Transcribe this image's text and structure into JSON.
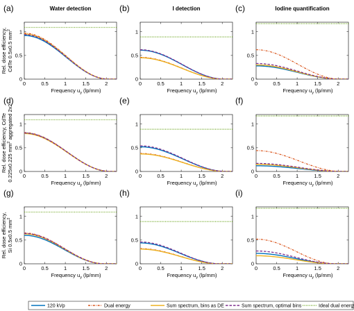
{
  "figure": {
    "legend": [
      {
        "label": "120 kVp",
        "color": "#0072bd",
        "dash": "solid"
      },
      {
        "label": "Dual energy",
        "color": "#d95319",
        "dash": "dash-dot"
      },
      {
        "label": "Sum spectrum, bins as DE",
        "color": "#edb120",
        "dash": "solid"
      },
      {
        "label": "Sum spectrum, optimal bins",
        "color": "#7e2f8e",
        "dash": "dash"
      },
      {
        "label": "Ideal dual energy",
        "color": "#77ac30",
        "dash": "dotted"
      }
    ],
    "column_titles": [
      "Water detection",
      "I detection",
      "Iodine quantification"
    ],
    "row_ylabels": [
      [
        "Rel. dose efficiency,",
        "CdTe 0.5x0.5 mm²"
      ],
      [
        "Rel. dose efficiency, CdTe",
        "0.225x0.225 mm² aggregated 2x2"
      ],
      [
        "Rel. dose efficiency,",
        "Si 0.5x0.5 mm²"
      ]
    ],
    "xlabel": "Frequency u_y (lp/mm)"
  },
  "chart_data": [
    {
      "type": "line",
      "panel": "(a)",
      "title": "Water detection",
      "xlim": [
        0,
        2.25
      ],
      "ylim": [
        0,
        1.2
      ],
      "xticks": [
        0,
        0.5,
        1,
        1.5,
        2
      ],
      "yticks": [
        0,
        0.5,
        1
      ],
      "series": [
        {
          "name": "120 kVp",
          "peak": 0.92,
          "cutoff": 2.05
        },
        {
          "name": "Dual energy",
          "peak": 0.97,
          "cutoff": 2.05
        },
        {
          "name": "Sum spectrum, bins as DE",
          "peak": 0.95,
          "cutoff": 2.05
        },
        {
          "name": "Sum spectrum, optimal bins",
          "peak": 0.94,
          "cutoff": 2.05
        },
        {
          "name": "Ideal dual energy",
          "constant": 1.09
        }
      ]
    },
    {
      "type": "line",
      "panel": "(b)",
      "title": "I detection",
      "xlim": [
        0,
        2.25
      ],
      "ylim": [
        0,
        1.2
      ],
      "xticks": [
        0,
        0.5,
        1,
        1.5,
        2
      ],
      "yticks": [
        0,
        0.5,
        1
      ],
      "series": [
        {
          "name": "120 kVp",
          "peak": 0.61,
          "cutoff": 2.05
        },
        {
          "name": "Dual energy",
          "peak": 0.46,
          "cutoff": 2.05
        },
        {
          "name": "Sum spectrum, bins as DE",
          "peak": 0.45,
          "cutoff": 2.05
        },
        {
          "name": "Sum spectrum, optimal bins",
          "peak": 0.62,
          "cutoff": 2.05
        },
        {
          "name": "Ideal dual energy",
          "constant": 0.89
        }
      ]
    },
    {
      "type": "line",
      "panel": "(c)",
      "title": "Iodine quantification",
      "xlim": [
        0,
        2.25
      ],
      "ylim": [
        0,
        1.2
      ],
      "xticks": [
        0,
        0.5,
        1,
        1.5,
        2
      ],
      "yticks": [
        0,
        0.5,
        1
      ],
      "series": [
        {
          "name": "120 kVp",
          "peak": 0.28,
          "cutoff": 2.05
        },
        {
          "name": "Dual energy",
          "peak": 0.62,
          "cutoff": 2.05
        },
        {
          "name": "Sum spectrum, bins as DE",
          "peak": 0.3,
          "cutoff": 2.05
        },
        {
          "name": "Sum spectrum, optimal bins",
          "peak": 0.33,
          "cutoff": 2.05
        },
        {
          "name": "Ideal dual energy",
          "constant": 1.17
        }
      ]
    },
    {
      "type": "line",
      "panel": "(d)",
      "title": "",
      "xlim": [
        0,
        2.25
      ],
      "ylim": [
        0,
        1.2
      ],
      "xticks": [
        0,
        0.5,
        1,
        1.5,
        2
      ],
      "yticks": [
        0,
        0.5,
        1
      ],
      "series": [
        {
          "name": "120 kVp",
          "peak": 0.81,
          "cutoff": 2.1
        },
        {
          "name": "Dual energy",
          "peak": 0.82,
          "cutoff": 2.1
        },
        {
          "name": "Sum spectrum, bins as DE",
          "peak": 0.8,
          "cutoff": 2.1
        },
        {
          "name": "Sum spectrum, optimal bins",
          "peak": 0.81,
          "cutoff": 2.1
        },
        {
          "name": "Ideal dual energy",
          "constant": 1.09
        }
      ]
    },
    {
      "type": "line",
      "panel": "(e)",
      "title": "",
      "xlim": [
        0,
        2.25
      ],
      "ylim": [
        0,
        1.2
      ],
      "xticks": [
        0,
        0.5,
        1,
        1.5,
        2
      ],
      "yticks": [
        0,
        0.5,
        1
      ],
      "series": [
        {
          "name": "120 kVp",
          "peak": 0.52,
          "cutoff": 2.1
        },
        {
          "name": "Dual energy",
          "peak": 0.38,
          "cutoff": 2.1
        },
        {
          "name": "Sum spectrum, bins as DE",
          "peak": 0.37,
          "cutoff": 2.1
        },
        {
          "name": "Sum spectrum, optimal bins",
          "peak": 0.54,
          "cutoff": 2.1
        },
        {
          "name": "Ideal dual energy",
          "constant": 0.89
        }
      ]
    },
    {
      "type": "line",
      "panel": "(f)",
      "title": "",
      "xlim": [
        0,
        2.25
      ],
      "ylim": [
        0,
        1.2
      ],
      "xticks": [
        0,
        0.5,
        1,
        1.5,
        2
      ],
      "yticks": [
        0,
        0.5,
        1
      ],
      "series": [
        {
          "name": "120 kVp",
          "peak": 0.12,
          "cutoff": 2.1
        },
        {
          "name": "Dual energy",
          "peak": 0.44,
          "cutoff": 2.1
        },
        {
          "name": "Sum spectrum, bins as DE",
          "peak": 0.15,
          "cutoff": 2.1
        },
        {
          "name": "Sum spectrum, optimal bins",
          "peak": 0.17,
          "cutoff": 2.1
        },
        {
          "name": "Ideal dual energy",
          "constant": 1.17
        }
      ]
    },
    {
      "type": "line",
      "panel": "(g)",
      "title": "",
      "xlim": [
        0,
        2.25
      ],
      "ylim": [
        0,
        1.2
      ],
      "xticks": [
        0,
        0.5,
        1,
        1.5,
        2
      ],
      "yticks": [
        0,
        0.5,
        1
      ],
      "series": [
        {
          "name": "120 kVp",
          "peak": 0.6,
          "cutoff": 1.95
        },
        {
          "name": "Dual energy",
          "peak": 0.65,
          "cutoff": 1.95
        },
        {
          "name": "Sum spectrum, bins as DE",
          "peak": 0.63,
          "cutoff": 1.95
        },
        {
          "name": "Sum spectrum, optimal bins",
          "peak": 0.64,
          "cutoff": 1.95
        },
        {
          "name": "Ideal dual energy",
          "constant": 1.09
        }
      ]
    },
    {
      "type": "line",
      "panel": "(h)",
      "title": "",
      "xlim": [
        0,
        2.25
      ],
      "ylim": [
        0,
        1.2
      ],
      "xticks": [
        0,
        0.5,
        1,
        1.5,
        2
      ],
      "yticks": [
        0,
        0.5,
        1
      ],
      "series": [
        {
          "name": "120 kVp",
          "peak": 0.44,
          "cutoff": 1.95
        },
        {
          "name": "Dual energy",
          "peak": 0.32,
          "cutoff": 1.95
        },
        {
          "name": "Sum spectrum, bins as DE",
          "peak": 0.31,
          "cutoff": 1.95
        },
        {
          "name": "Sum spectrum, optimal bins",
          "peak": 0.46,
          "cutoff": 1.95
        },
        {
          "name": "Ideal dual energy",
          "constant": 0.89
        }
      ]
    },
    {
      "type": "line",
      "panel": "(i)",
      "title": "",
      "xlim": [
        0,
        2.25
      ],
      "ylim": [
        0,
        1.2
      ],
      "xticks": [
        0,
        0.5,
        1,
        1.5,
        2
      ],
      "yticks": [
        0,
        0.5,
        1
      ],
      "series": [
        {
          "name": "120 kVp",
          "peak": 0.22,
          "cutoff": 1.95
        },
        {
          "name": "Dual energy",
          "peak": 0.52,
          "cutoff": 1.95
        },
        {
          "name": "Sum spectrum, bins as DE",
          "peak": 0.17,
          "cutoff": 1.95
        },
        {
          "name": "Sum spectrum, optimal bins",
          "peak": 0.27,
          "cutoff": 1.95
        },
        {
          "name": "Ideal dual energy",
          "constant": 1.17
        }
      ]
    }
  ]
}
